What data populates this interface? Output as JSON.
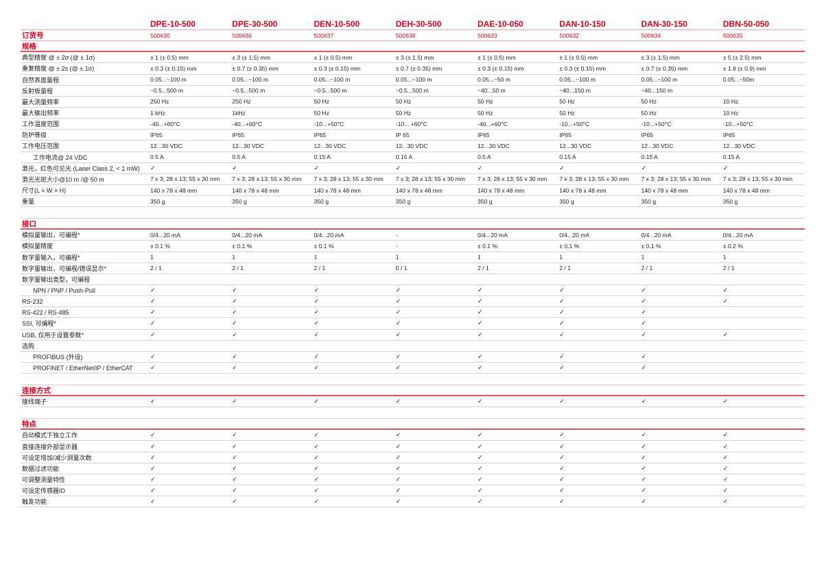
{
  "products": [
    "DPE-10-500",
    "DPE-30-500",
    "DEN-10-500",
    "DEH-30-500",
    "DAE-10-050",
    "DAN-10-150",
    "DAN-30-150",
    "DBN-50-050"
  ],
  "order": {
    "label": "订货号",
    "values": [
      "500630",
      "500636",
      "500637",
      "500638",
      "500633",
      "500632",
      "500634",
      "500635"
    ]
  },
  "accent_color": "#e2001a",
  "sections": [
    {
      "title": "规格",
      "rows": [
        {
          "label": "典型精度 @ ± 2σ (@ ± 1σ)",
          "values": [
            "± 1 (± 0.5) mm",
            "± 3 (± 1.5) mm",
            "± 1 (± 0.5) mm",
            "± 3 (± 1.5) mm",
            "± 1 (± 0.5) mm",
            "± 1 (± 0.5) mm",
            "± 3 (± 1.5) mm",
            "± 5 (± 2.5) mm"
          ]
        },
        {
          "label": "重复精度 @ ± 2s (@ ± 1σ)",
          "values": [
            "± 0.3 (± 0.15) mm",
            "± 0.7 (± 0.35) mm",
            "± 0.3 (± 0.15) mm",
            "± 0.7 (± 0.35) mm",
            "± 0.3 (± 0.15) mm",
            "± 0.3 (± 0.15) mm",
            "± 0.7 (± 0.35) mm",
            "± 1.8 (± 0.9) mm"
          ]
        },
        {
          "label": "自然表面量程",
          "values": [
            "0.05...~100 m",
            "0.05...~100 m",
            "0.05...~100 m",
            "0.05...~100 m",
            "0.05...~50 m",
            "0.05...~100 m",
            "0.05...~100 m",
            "0.05...~50m"
          ]
        },
        {
          "label": "反射板量程",
          "values": [
            " ~0.5...500 m",
            " ~0.5...500 m",
            " ~0.5...500 m",
            " ~0.5...500 m",
            "~40...50 m",
            "~40...150 m",
            "~40...150 m",
            ""
          ]
        },
        {
          "label": "最大测量频率",
          "values": [
            "250 Hz",
            "250 Hz",
            "50 Hz",
            "50 Hz",
            "50 Hz",
            "50 Hz",
            "50 Hz",
            "10 Hz"
          ]
        },
        {
          "label": "最大输出频率",
          "values": [
            "1 kHz",
            "1kHz",
            "50 Hz",
            "50 Hz",
            "50 Hz",
            "50 Hz",
            "50 Hz",
            "10 Hz"
          ]
        },
        {
          "label": "工作温度范围",
          "values": [
            "-40...+60°C",
            "-40...+60°C",
            "-10...+50°C",
            "-10... +60°C",
            "-40...+60°C",
            "-10...+50°C",
            "-10...+50°C",
            "-10...+50°C"
          ]
        },
        {
          "label": "防护等级",
          "values": [
            "IP65",
            "IP65",
            "IP65",
            "IP 65",
            "IP65",
            "IP65",
            "IP65",
            "IP65"
          ]
        },
        {
          "label": "工作电压范围",
          "values": [
            "12...30 VDC",
            "12...30 VDC",
            "12...30 VDC",
            "12...30 VDC",
            "12...30 VDC",
            "12...30 VDC",
            "12...30 VDC",
            "12...30 VDC"
          ]
        },
        {
          "label": "工作电流@ 24 VDC",
          "indent": true,
          "values": [
            "0.5 A",
            "0.5 A",
            "0.15 A",
            "0.15 A",
            "0.5 A",
            "0.15 A",
            "0.15 A",
            "0.15 A"
          ]
        },
        {
          "label": "激光，红色可见光 (Laser Class 2, < 1 mW)",
          "values": [
            "✓",
            "✓",
            "✓",
            "✓",
            "✓",
            "✓",
            "✓",
            "✓"
          ]
        },
        {
          "label": "激光光斑大小@10 m /@ 50 m",
          "values": [
            "7 x 3; 28 x 13; 55 x 30 mm",
            "7 x 3; 28 x 13; 55 x 30 mm",
            "7 x 3; 28 x 13; 55 x 30 mm",
            "7 x 3; 28 x 13; 55 x 30 mm",
            "7 x 3; 28 x 13; 55 x 30 mm",
            "7 x 3; 28 x 13; 55 x 30 mm",
            "7 x 3; 28 x 13; 55 x 30 mm",
            "7 x 3; 28 x 13; 55 x 30 mm"
          ]
        },
        {
          "label": "尺寸(L × W × H)",
          "values": [
            "140 x 78 x 48 mm",
            "140 x 78 x 48 mm",
            "140 x 78 x 48 mm",
            "140 x 78 x 48 mm",
            "140 x 78 x 48 mm",
            "140 x 78 x 48 mm",
            "140 x 78 x 48 mm",
            "140 x 78 x 48 mm"
          ]
        },
        {
          "label": "重量",
          "values": [
            "350 g",
            "350 g",
            "350 g",
            "350 g",
            "350 g",
            "350 g",
            "350 g",
            "350 g"
          ]
        }
      ]
    },
    {
      "title": "接口",
      "rows": [
        {
          "label": "模拟量输出，可编程*",
          "values": [
            "0/4...20 mA",
            "0/4...20 mA",
            "0/4...20 mA",
            "-",
            "0/4...20 mA",
            "0/4...20 mA",
            "0/4...20 mA",
            "0/4...20 mA"
          ]
        },
        {
          "label": "模拟量精度",
          "values": [
            "± 0.1 %",
            "± 0.1 %",
            "± 0.1 %",
            "-",
            "± 0.1 %",
            "± 0.1 %",
            "± 0.1 %",
            "± 0.2 %"
          ]
        },
        {
          "label": "数字量输入，可编程*",
          "values": [
            "1",
            "1",
            "1",
            "1",
            "1",
            "1",
            "1",
            "1"
          ]
        },
        {
          "label": "数字量输出，可编程/错误显示*",
          "values": [
            "2 / 1",
            "2 / 1",
            "2 / 1",
            "0 / 1",
            "2 / 1",
            "2 / 1",
            "2 / 1",
            "2 / 1"
          ]
        },
        {
          "label": "数字量输出类型，可编程",
          "values": [
            "",
            "",
            "",
            "",
            "",
            "",
            "",
            ""
          ]
        },
        {
          "label": "NPN / PNP / Push-Pull",
          "indent": true,
          "values": [
            "✓",
            "✓",
            "✓",
            "✓",
            "✓",
            "✓",
            "✓",
            "✓"
          ]
        },
        {
          "label": "RS-232",
          "values": [
            "✓",
            "✓",
            "✓",
            "✓",
            "✓",
            "✓",
            "✓",
            "✓"
          ]
        },
        {
          "label": "RS-422 / RS-485",
          "values": [
            "✓",
            "✓",
            "✓",
            "✓",
            "✓",
            "✓",
            "✓",
            ""
          ]
        },
        {
          "label": "SSI, 可编程*",
          "values": [
            "✓",
            "✓",
            "✓",
            "✓",
            "✓",
            "✓",
            "✓",
            ""
          ]
        },
        {
          "label": "USB, 仅用于设置参数*",
          "values": [
            "✓",
            "✓",
            "✓",
            "✓",
            "✓",
            "✓",
            "✓",
            "✓"
          ]
        },
        {
          "label": "选购",
          "values": [
            "",
            "",
            "",
            "",
            "",
            "",
            "",
            ""
          ]
        },
        {
          "label": "PROFIBUS (外设)",
          "indent": true,
          "values": [
            "✓",
            "✓",
            "✓",
            "✓",
            "✓",
            "✓",
            "✓",
            ""
          ]
        },
        {
          "label": "PROFINET / EtherNet/IP / EtherCAT",
          "indent": true,
          "values": [
            "✓",
            "✓",
            "✓",
            "✓",
            "✓",
            "✓",
            "✓",
            ""
          ]
        }
      ]
    },
    {
      "title": "连接方式",
      "rows": [
        {
          "label": "接线端子",
          "values": [
            "✓",
            "✓",
            "✓",
            "✓",
            "✓",
            "✓",
            "✓",
            "✓"
          ]
        }
      ]
    },
    {
      "title": "特点",
      "rows": [
        {
          "label": "自动模式下独立工作",
          "values": [
            "✓",
            "✓",
            "✓",
            "✓",
            "✓",
            "✓",
            "✓",
            "✓"
          ]
        },
        {
          "label": "直接连接外部显示器",
          "values": [
            "✓",
            "✓",
            "✓",
            "✓",
            "✓",
            "✓",
            "✓",
            "✓"
          ]
        },
        {
          "label": "可设定增加/减少测量次数",
          "values": [
            "✓",
            "✓",
            "✓",
            "✓",
            "✓",
            "✓",
            "✓",
            "✓"
          ]
        },
        {
          "label": "数据过滤功能",
          "values": [
            "✓",
            "✓",
            "✓",
            "✓",
            "✓",
            "✓",
            "✓",
            "✓"
          ]
        },
        {
          "label": "可调整测量特性",
          "values": [
            "✓",
            "✓",
            "✓",
            "✓",
            "✓",
            "✓",
            "✓",
            "✓"
          ]
        },
        {
          "label": "可设定传感器ID",
          "values": [
            "✓",
            "✓",
            "✓",
            "✓",
            "✓",
            "✓",
            "✓",
            "✓"
          ]
        },
        {
          "label": "触发功能",
          "values": [
            "✓",
            "✓",
            "✓",
            "✓",
            "✓",
            "✓",
            "✓",
            "✓"
          ]
        }
      ]
    }
  ]
}
